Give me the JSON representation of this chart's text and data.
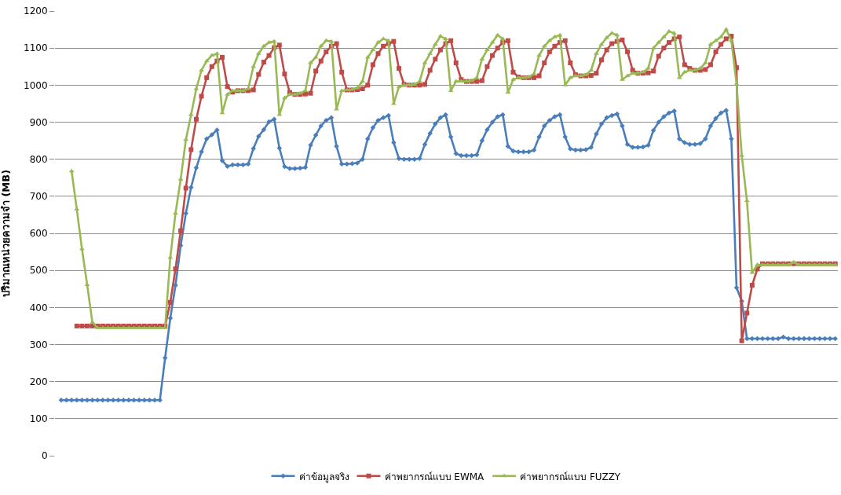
{
  "chart_data": {
    "type": "line",
    "ylabel": "ปริมาณหน่วยความจำ (MB)",
    "ylim": [
      0,
      1200
    ],
    "yticks": [
      0,
      100,
      200,
      300,
      400,
      500,
      600,
      700,
      800,
      900,
      1000,
      1100,
      1200
    ],
    "grid": "y",
    "legend": "bottom",
    "tick_labels": "y",
    "line_style": "solid",
    "categories": [
      null,
      null,
      null,
      null,
      null,
      null,
      null,
      null,
      null,
      null,
      null,
      null,
      null,
      null,
      null,
      null,
      null,
      null,
      null,
      null,
      null,
      null,
      null,
      null,
      null,
      null,
      null,
      null,
      null,
      null,
      null,
      null,
      null,
      null,
      null,
      null,
      null,
      null,
      null,
      null,
      null,
      null,
      null,
      null,
      null,
      null,
      null,
      null,
      null,
      null,
      null,
      null,
      null,
      null,
      null,
      null,
      null,
      null,
      null,
      null,
      null,
      null,
      null,
      null,
      null,
      null,
      null,
      null,
      null,
      null,
      null,
      null,
      null,
      null,
      null,
      null,
      null,
      null,
      null,
      null,
      null,
      null,
      null,
      null,
      null,
      null,
      null,
      null,
      null,
      null,
      null,
      null,
      null,
      null,
      null,
      null,
      null,
      null,
      null,
      null,
      null,
      null,
      null,
      null,
      null,
      null,
      null,
      null,
      null,
      null,
      null,
      null,
      null,
      null,
      null,
      null,
      null,
      null,
      null,
      null,
      null,
      null,
      null,
      null,
      null,
      null,
      null,
      null,
      null,
      null,
      null,
      null,
      null,
      null,
      null,
      null,
      null,
      null,
      null,
      null,
      null,
      null,
      null,
      null,
      null,
      null,
      null,
      null,
      null,
      null
    ],
    "series": [
      {
        "name": "ค่าข้อมูลจริง",
        "color": "#4a7ebb",
        "marker": "diamond",
        "values": [
          150,
          150,
          150,
          150,
          150,
          150,
          150,
          150,
          150,
          150,
          150,
          150,
          150,
          150,
          150,
          150,
          150,
          150,
          150,
          150,
          264,
          371,
          460,
          567,
          654,
          724,
          777,
          820,
          855,
          866,
          879,
          796,
          781,
          785,
          785,
          785,
          787,
          829,
          862,
          880,
          901,
          908,
          830,
          780,
          775,
          775,
          776,
          778,
          838,
          865,
          890,
          905,
          912,
          835,
          787,
          787,
          788,
          790,
          800,
          855,
          885,
          905,
          912,
          918,
          845,
          802,
          800,
          800,
          800,
          802,
          840,
          870,
          895,
          912,
          920,
          860,
          815,
          810,
          810,
          810,
          812,
          850,
          880,
          900,
          915,
          920,
          835,
          822,
          820,
          820,
          820,
          825,
          860,
          890,
          905,
          915,
          920,
          860,
          828,
          825,
          825,
          826,
          832,
          868,
          895,
          912,
          918,
          922,
          890,
          840,
          832,
          832,
          833,
          838,
          878,
          900,
          915,
          925,
          930,
          855,
          845,
          840,
          840,
          842,
          855,
          890,
          910,
          925,
          932,
          855,
          453,
          417,
          316,
          316,
          316,
          316,
          316,
          316,
          316,
          320,
          316,
          316,
          316,
          316,
          316,
          316,
          316,
          316,
          316,
          316
        ]
      },
      {
        "name": "ค่าพยากรณ์แบบ EWMA",
        "color": "#be4b48",
        "marker": "square",
        "values": [
          null,
          null,
          null,
          350,
          350,
          350,
          350,
          350,
          350,
          350,
          350,
          350,
          350,
          350,
          350,
          350,
          350,
          350,
          350,
          350,
          350,
          414,
          504,
          607,
          722,
          826,
          908,
          970,
          1020,
          1050,
          1065,
          1075,
          996,
          981,
          985,
          985,
          985,
          987,
          1029,
          1062,
          1080,
          1101,
          1108,
          1030,
          980,
          975,
          975,
          976,
          978,
          1038,
          1065,
          1090,
          1105,
          1112,
          1035,
          987,
          987,
          988,
          990,
          1000,
          1055,
          1085,
          1105,
          1112,
          1118,
          1045,
          1002,
          1000,
          1000,
          1000,
          1002,
          1040,
          1070,
          1095,
          1112,
          1120,
          1060,
          1015,
          1010,
          1010,
          1010,
          1012,
          1050,
          1080,
          1100,
          1115,
          1120,
          1035,
          1022,
          1020,
          1020,
          1020,
          1025,
          1060,
          1090,
          1105,
          1115,
          1120,
          1060,
          1028,
          1025,
          1025,
          1026,
          1032,
          1068,
          1095,
          1112,
          1118,
          1122,
          1090,
          1040,
          1032,
          1032,
          1033,
          1038,
          1078,
          1100,
          1115,
          1125,
          1130,
          1055,
          1045,
          1040,
          1040,
          1042,
          1055,
          1090,
          1110,
          1125,
          1132,
          1047,
          310,
          385,
          460,
          504,
          518,
          518,
          518,
          518,
          518,
          518,
          518,
          518,
          518,
          518,
          518,
          518,
          518,
          518,
          518
        ]
      },
      {
        "name": "ค่าพยากรณ์แบบ FUZZY",
        "color": "#98b954",
        "marker": "triangle",
        "values": [
          null,
          null,
          768,
          665,
          558,
          461,
          360,
          345,
          345,
          345,
          345,
          345,
          345,
          345,
          345,
          345,
          345,
          345,
          345,
          345,
          345,
          535,
          654,
          746,
          853,
          920,
          990,
          1040,
          1065,
          1080,
          1085,
          925,
          975,
          985,
          985,
          985,
          990,
          1050,
          1085,
          1105,
          1115,
          1118,
          920,
          965,
          975,
          975,
          978,
          985,
          1060,
          1075,
          1105,
          1120,
          1118,
          935,
          985,
          987,
          988,
          992,
          1010,
          1075,
          1095,
          1115,
          1125,
          1120,
          950,
          995,
          1000,
          1000,
          1002,
          1010,
          1060,
          1085,
          1110,
          1132,
          1125,
          985,
          1010,
          1010,
          1010,
          1012,
          1020,
          1070,
          1095,
          1115,
          1135,
          1125,
          980,
          1015,
          1020,
          1020,
          1022,
          1030,
          1080,
          1105,
          1120,
          1130,
          1135,
          1000,
          1020,
          1025,
          1025,
          1028,
          1040,
          1085,
          1110,
          1128,
          1140,
          1135,
          1015,
          1025,
          1032,
          1032,
          1035,
          1045,
          1100,
          1115,
          1130,
          1145,
          1140,
          1020,
          1035,
          1040,
          1040,
          1045,
          1060,
          1110,
          1120,
          1130,
          1150,
          1120,
          1003,
          810,
          688,
          494,
          515,
          515,
          515,
          515,
          515,
          515,
          515,
          522,
          515,
          515,
          515,
          515,
          515,
          515,
          515,
          515
        ]
      }
    ]
  }
}
